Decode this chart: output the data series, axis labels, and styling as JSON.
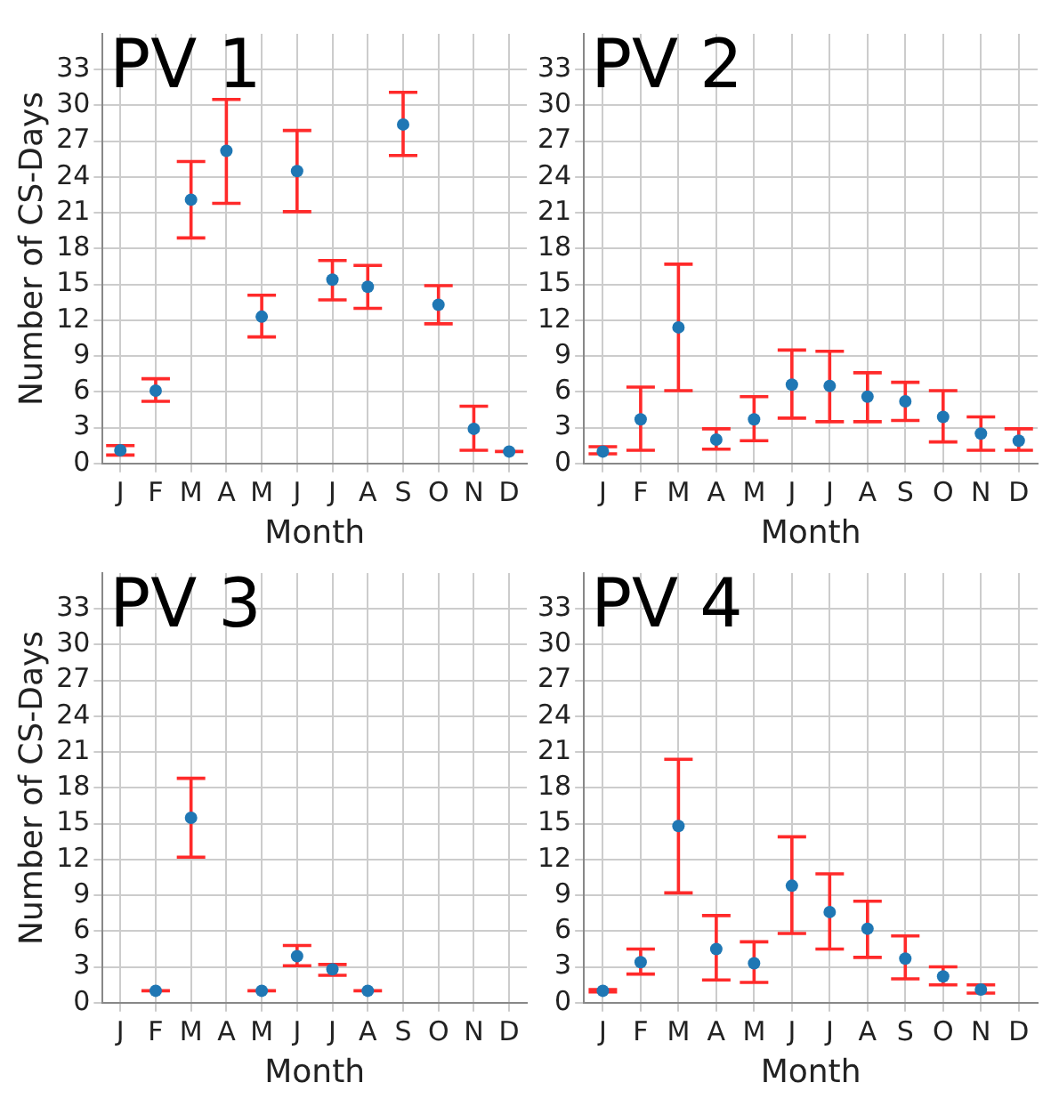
{
  "chart_data": [
    {
      "type": "scatter",
      "title": "PV 1",
      "xlabel": "Month",
      "ylabel": "Number of CS-Days",
      "categories": [
        "J",
        "F",
        "M",
        "A",
        "M",
        "J",
        "J",
        "A",
        "S",
        "O",
        "N",
        "D"
      ],
      "series": [
        {
          "color": "#1f77b4",
          "values": [
            1.1,
            6.1,
            22.1,
            26.2,
            12.3,
            24.5,
            15.4,
            14.8,
            28.4,
            13.3,
            2.9,
            1.0
          ],
          "errors": [
            [
              0.7,
              1.5
            ],
            [
              5.2,
              7.1
            ],
            [
              18.9,
              25.3
            ],
            [
              21.8,
              30.5
            ],
            [
              10.6,
              14.1
            ],
            [
              21.1,
              27.9
            ],
            [
              13.7,
              17.0
            ],
            [
              13.0,
              16.6
            ],
            [
              25.8,
              31.1
            ],
            [
              11.7,
              14.9
            ],
            [
              1.1,
              4.8
            ],
            [
              1.0,
              1.0
            ]
          ]
        }
      ],
      "ylim": [
        0,
        36
      ],
      "yticks": [
        0,
        3,
        6,
        9,
        12,
        15,
        18,
        21,
        24,
        27,
        30,
        33
      ],
      "grid": true,
      "marker": "circle"
    },
    {
      "type": "scatter",
      "title": "PV 2",
      "xlabel": "Month",
      "categories": [
        "J",
        "F",
        "M",
        "A",
        "M",
        "J",
        "J",
        "A",
        "S",
        "O",
        "N",
        "D"
      ],
      "series": [
        {
          "color": "#1f77b4",
          "values": [
            1.0,
            3.7,
            11.4,
            2.0,
            3.7,
            6.6,
            6.5,
            5.6,
            5.2,
            3.9,
            2.5,
            1.9
          ],
          "errors": [
            [
              0.8,
              1.4
            ],
            [
              1.1,
              6.4
            ],
            [
              6.1,
              16.7
            ],
            [
              1.2,
              2.9
            ],
            [
              1.9,
              5.6
            ],
            [
              3.8,
              9.5
            ],
            [
              3.5,
              9.4
            ],
            [
              3.5,
              7.6
            ],
            [
              3.6,
              6.8
            ],
            [
              1.8,
              6.1
            ],
            [
              1.1,
              3.9
            ],
            [
              1.1,
              2.9
            ]
          ]
        }
      ],
      "ylim": [
        0,
        36
      ],
      "yticks": [
        0,
        3,
        6,
        9,
        12,
        15,
        18,
        21,
        24,
        27,
        30,
        33
      ],
      "grid": true,
      "marker": "circle"
    },
    {
      "type": "scatter",
      "title": "PV 3",
      "xlabel": "Month",
      "ylabel": "Number of CS-Days",
      "categories": [
        "J",
        "F",
        "M",
        "A",
        "M",
        "J",
        "J",
        "A",
        "S",
        "O",
        "N",
        "D"
      ],
      "series": [
        {
          "color": "#1f77b4",
          "values": [
            null,
            1.0,
            15.5,
            null,
            1.0,
            3.9,
            2.8,
            1.0,
            null,
            null,
            null,
            null
          ],
          "errors": [
            null,
            [
              1.0,
              1.0
            ],
            [
              12.2,
              18.8
            ],
            null,
            [
              1.0,
              1.0
            ],
            [
              3.1,
              4.8
            ],
            [
              2.3,
              3.2
            ],
            [
              1.0,
              1.0
            ],
            null,
            null,
            null,
            null
          ]
        }
      ],
      "ylim": [
        0,
        36
      ],
      "yticks": [
        0,
        3,
        6,
        9,
        12,
        15,
        18,
        21,
        24,
        27,
        30,
        33
      ],
      "grid": true,
      "marker": "circle"
    },
    {
      "type": "scatter",
      "title": "PV 4",
      "xlabel": "Month",
      "categories": [
        "J",
        "F",
        "M",
        "A",
        "M",
        "J",
        "J",
        "A",
        "S",
        "O",
        "N",
        "D"
      ],
      "series": [
        {
          "color": "#1f77b4",
          "values": [
            1.0,
            3.4,
            14.8,
            4.5,
            3.3,
            9.8,
            7.6,
            6.2,
            3.7,
            2.2,
            1.1,
            null
          ],
          "errors": [
            [
              0.9,
              1.1
            ],
            [
              2.4,
              4.5
            ],
            [
              9.2,
              20.4
            ],
            [
              1.9,
              7.3
            ],
            [
              1.7,
              5.1
            ],
            [
              5.8,
              13.9
            ],
            [
              4.5,
              10.8
            ],
            [
              3.8,
              8.5
            ],
            [
              2.0,
              5.6
            ],
            [
              1.5,
              3.0
            ],
            [
              0.8,
              1.5
            ],
            null
          ]
        }
      ],
      "ylim": [
        0,
        36
      ],
      "yticks": [
        0,
        3,
        6,
        9,
        12,
        15,
        18,
        21,
        24,
        27,
        30,
        33
      ],
      "grid": true,
      "marker": "circle"
    }
  ]
}
